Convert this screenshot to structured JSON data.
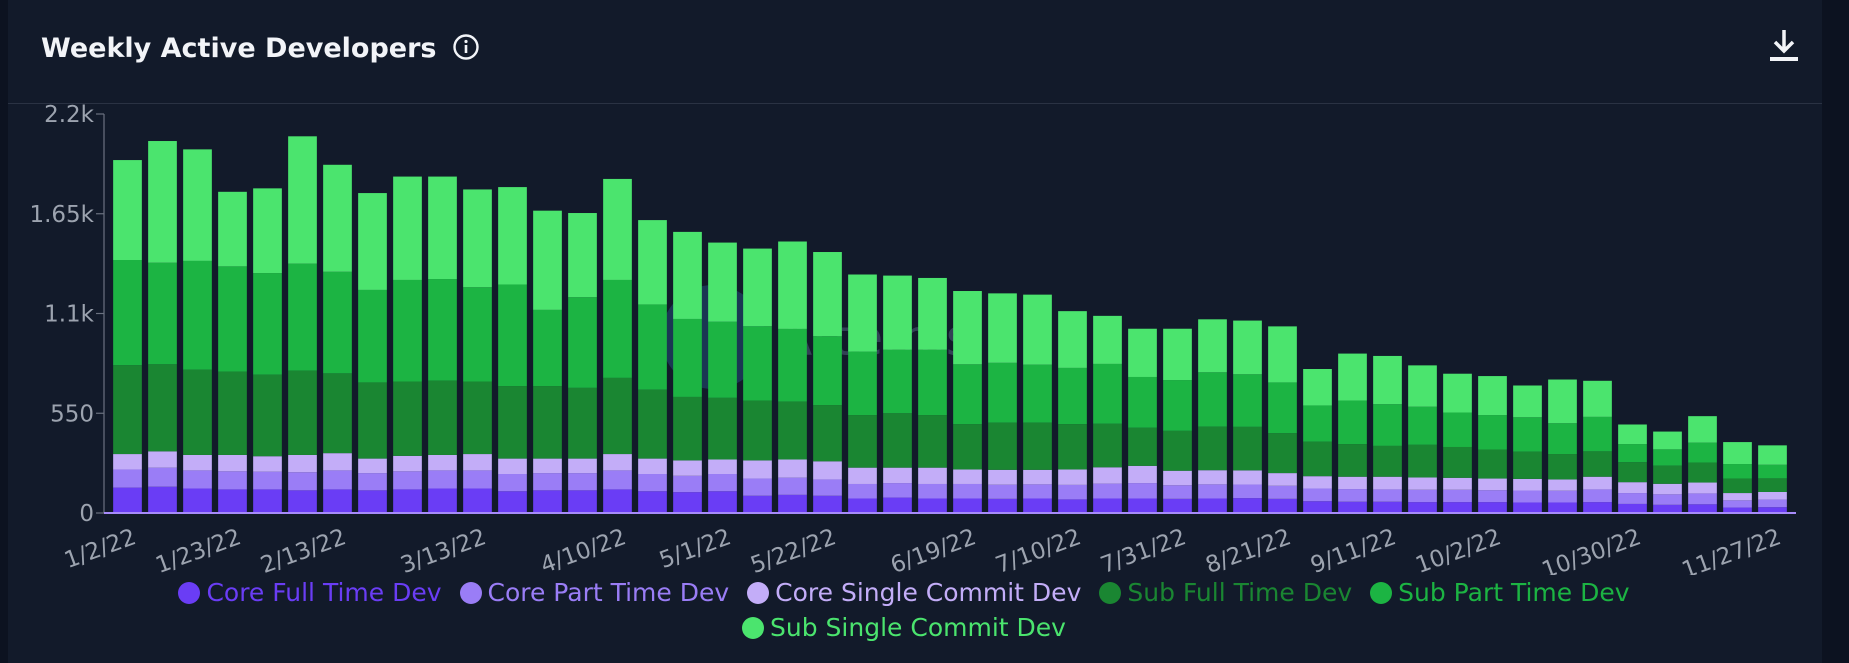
{
  "chart_data": {
    "type": "stacked_bar",
    "title": "Weekly Active Developers",
    "watermark": "Artemis",
    "categories": [
      "1/2/22",
      null,
      null,
      "1/23/22",
      null,
      null,
      "2/13/22",
      null,
      null,
      null,
      "3/13/22",
      null,
      null,
      null,
      "4/10/22",
      null,
      null,
      "5/1/22",
      null,
      null,
      "5/22/22",
      null,
      null,
      null,
      "6/19/22",
      null,
      null,
      "7/10/22",
      null,
      null,
      "7/31/22",
      null,
      null,
      "8/21/22",
      null,
      null,
      "9/11/22",
      null,
      null,
      "10/2/22",
      null,
      null,
      null,
      "10/30/22",
      null,
      null,
      null,
      "11/27/22"
    ],
    "series": [
      {
        "name": "Core Full Time Dev",
        "color": "#6a3df5",
        "values": [
          140,
          145,
          135,
          130,
          130,
          125,
          130,
          125,
          130,
          135,
          135,
          120,
          125,
          125,
          130,
          120,
          115,
          120,
          95,
          100,
          95,
          80,
          85,
          80,
          80,
          78,
          80,
          75,
          80,
          80,
          78,
          80,
          82,
          78,
          65,
          62,
          62,
          60,
          60,
          60,
          58,
          58,
          60,
          50,
          45,
          48,
          30,
          32
        ]
      },
      {
        "name": "Core Part Time Dev",
        "color": "#9a7df6",
        "values": [
          100,
          105,
          100,
          100,
          98,
          100,
          105,
          95,
          100,
          100,
          100,
          95,
          95,
          95,
          105,
          95,
          90,
          95,
          95,
          95,
          90,
          80,
          80,
          80,
          80,
          78,
          78,
          80,
          82,
          85,
          75,
          78,
          75,
          72,
          70,
          70,
          68,
          68,
          68,
          66,
          66,
          65,
          70,
          60,
          58,
          60,
          40,
          42
        ]
      },
      {
        "name": "Core Single Commit Dev",
        "color": "#c3adf8",
        "values": [
          85,
          90,
          85,
          90,
          85,
          95,
          95,
          80,
          85,
          85,
          90,
          85,
          80,
          80,
          90,
          85,
          85,
          80,
          100,
          100,
          100,
          90,
          85,
          90,
          80,
          82,
          80,
          85,
          90,
          95,
          80,
          78,
          78,
          70,
          68,
          68,
          70,
          68,
          66,
          64,
          64,
          62,
          70,
          60,
          58,
          60,
          40,
          42
        ]
      },
      {
        "name": "Sub Full Time Dev",
        "color": "#1a8632",
        "values": [
          490,
          480,
          470,
          460,
          450,
          465,
          440,
          420,
          410,
          410,
          400,
          400,
          400,
          390,
          420,
          380,
          350,
          340,
          330,
          320,
          310,
          290,
          300,
          290,
          250,
          260,
          260,
          250,
          240,
          210,
          220,
          240,
          240,
          220,
          190,
          180,
          170,
          180,
          170,
          160,
          150,
          140,
          140,
          110,
          100,
          110,
          80,
          75
        ]
      },
      {
        "name": "Sub Part Time Dev",
        "color": "#1cb443",
        "values": [
          580,
          560,
          600,
          580,
          560,
          590,
          560,
          510,
          560,
          560,
          520,
          560,
          420,
          500,
          540,
          470,
          430,
          420,
          410,
          400,
          380,
          350,
          350,
          360,
          330,
          330,
          320,
          310,
          330,
          280,
          280,
          300,
          290,
          280,
          200,
          240,
          230,
          210,
          190,
          190,
          190,
          170,
          190,
          100,
          90,
          110,
          80,
          75
        ]
      },
      {
        "name": "Sub Single Commit Dev",
        "color": "#4be46e",
        "values": [
          551,
          671,
          615,
          411,
          467,
          702,
          590,
          534,
          570,
          565,
          539,
          537,
          547,
          464,
          557,
          465,
          480,
          436,
          428,
          482,
          464,
          425,
          409,
          396,
          404,
          383,
          386,
          313,
          265,
          266,
          283,
          292,
          296,
          309,
          201,
          259,
          266,
          228,
          214,
          215,
          175,
          241,
          199,
          108,
          98,
          146,
          121,
          107
        ]
      }
    ],
    "ylim": [
      0,
      2200
    ],
    "yticks": [
      0,
      {
        "value": 550,
        "label": "550"
      },
      {
        "value": 1100,
        "label": "1.1k"
      },
      {
        "value": 1650,
        "label": "1.65k"
      },
      {
        "value": 2200,
        "label": "2.2k"
      }
    ]
  }
}
